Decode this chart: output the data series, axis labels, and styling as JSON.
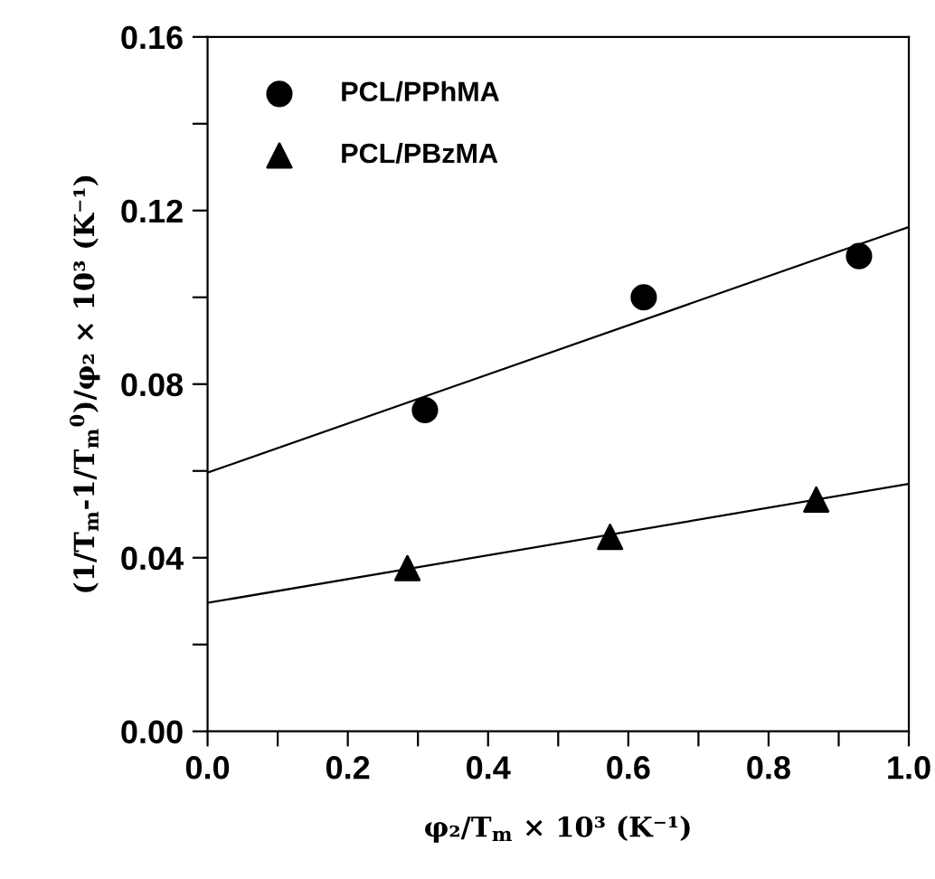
{
  "chart_data": {
    "type": "scatter",
    "xlabel": "φ₂/T$_{m}$ × 10³ (K⁻¹)",
    "ylabel": "(1/T$_{m}$-1/T$_{m}$$^{0}$)/φ₂ × 10³ (K⁻¹)",
    "xlim": [
      0.0,
      1.0
    ],
    "ylim": [
      0.0,
      0.16
    ],
    "xticks": [
      {
        "value": 0.0,
        "label": "0.0"
      },
      {
        "value": 0.1,
        "label": null
      },
      {
        "value": 0.2,
        "label": "0.2"
      },
      {
        "value": 0.3,
        "label": null
      },
      {
        "value": 0.4,
        "label": "0.4"
      },
      {
        "value": 0.5,
        "label": null
      },
      {
        "value": 0.6,
        "label": "0.6"
      },
      {
        "value": 0.7,
        "label": null
      },
      {
        "value": 0.8,
        "label": "0.8"
      },
      {
        "value": 0.9,
        "label": null
      },
      {
        "value": 1.0,
        "label": "1.0"
      }
    ],
    "yticks": [
      {
        "value": 0.0,
        "label": "0.00"
      },
      {
        "value": 0.02,
        "label": null
      },
      {
        "value": 0.04,
        "label": "0.04"
      },
      {
        "value": 0.06,
        "label": null
      },
      {
        "value": 0.08,
        "label": "0.08"
      },
      {
        "value": 0.1,
        "label": null
      },
      {
        "value": 0.12,
        "label": "0.12"
      },
      {
        "value": 0.14,
        "label": null
      },
      {
        "value": 0.16,
        "label": "0.16"
      }
    ],
    "grid": false,
    "legend": "top left",
    "series": [
      {
        "name": "PCL/PPhMA",
        "marker": "circle",
        "color": "#000000",
        "x": [
          0.31,
          0.622,
          0.929
        ],
        "values": [
          0.074,
          0.1,
          0.1095
        ]
      },
      {
        "name": "PCL/PBzMA",
        "marker": "triangle",
        "color": "#000000",
        "x": [
          0.285,
          0.574,
          0.868
        ],
        "values": [
          0.0376,
          0.0448,
          0.0534
        ]
      },
      {
        "type": "line",
        "marker": "none",
        "line_style": "solid",
        "color": "#000000",
        "x": [
          0.0,
          1.0
        ],
        "values": [
          0.0596,
          0.1162
        ]
      },
      {
        "type": "line",
        "marker": "none",
        "line_style": "solid",
        "color": "#000000",
        "x": [
          0.0,
          1.0
        ],
        "values": [
          0.0296,
          0.057
        ]
      }
    ]
  }
}
